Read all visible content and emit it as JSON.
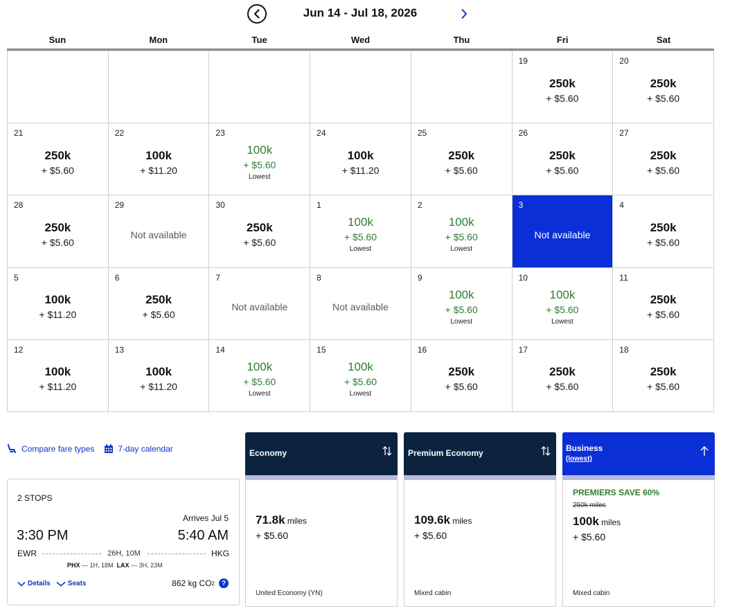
{
  "header": {
    "range_label": "Jun 14 - Jul 18, 2026",
    "prev_icon": "chevron-left-circle-icon",
    "next_icon": "chevron-right-icon"
  },
  "weekdays": [
    "Sun",
    "Mon",
    "Tue",
    "Wed",
    "Thu",
    "Fri",
    "Sat"
  ],
  "calendar": {
    "lowest_label": "Lowest",
    "not_available_label": "Not available",
    "cells": [
      {
        "day": "",
        "type": "empty"
      },
      {
        "day": "",
        "type": "empty"
      },
      {
        "day": "",
        "type": "empty"
      },
      {
        "day": "",
        "type": "empty"
      },
      {
        "day": "",
        "type": "empty"
      },
      {
        "day": "19",
        "type": "fare",
        "miles": "250k",
        "fee": "+ $5.60"
      },
      {
        "day": "20",
        "type": "fare",
        "miles": "250k",
        "fee": "+ $5.60"
      },
      {
        "day": "21",
        "type": "fare",
        "miles": "250k",
        "fee": "+ $5.60"
      },
      {
        "day": "22",
        "type": "fare",
        "miles": "100k",
        "fee": "+ $11.20"
      },
      {
        "day": "23",
        "type": "lowest",
        "miles": "100k",
        "fee": "+ $5.60"
      },
      {
        "day": "24",
        "type": "fare",
        "miles": "100k",
        "fee": "+ $11.20"
      },
      {
        "day": "25",
        "type": "fare",
        "miles": "250k",
        "fee": "+ $5.60"
      },
      {
        "day": "26",
        "type": "fare",
        "miles": "250k",
        "fee": "+ $5.60"
      },
      {
        "day": "27",
        "type": "fare",
        "miles": "250k",
        "fee": "+ $5.60"
      },
      {
        "day": "28",
        "type": "fare",
        "miles": "250k",
        "fee": "+ $5.60"
      },
      {
        "day": "29",
        "type": "na"
      },
      {
        "day": "30",
        "type": "fare",
        "miles": "250k",
        "fee": "+ $5.60"
      },
      {
        "day": "1",
        "type": "lowest",
        "miles": "100k",
        "fee": "+ $5.60"
      },
      {
        "day": "2",
        "type": "lowest",
        "miles": "100k",
        "fee": "+ $5.60"
      },
      {
        "day": "3",
        "type": "na",
        "selected": true
      },
      {
        "day": "4",
        "type": "fare",
        "miles": "250k",
        "fee": "+ $5.60"
      },
      {
        "day": "5",
        "type": "fare",
        "miles": "100k",
        "fee": "+ $11.20"
      },
      {
        "day": "6",
        "type": "fare",
        "miles": "250k",
        "fee": "+ $5.60"
      },
      {
        "day": "7",
        "type": "na"
      },
      {
        "day": "8",
        "type": "na"
      },
      {
        "day": "9",
        "type": "lowest",
        "miles": "100k",
        "fee": "+ $5.60"
      },
      {
        "day": "10",
        "type": "lowest",
        "miles": "100k",
        "fee": "+ $5.60"
      },
      {
        "day": "11",
        "type": "fare",
        "miles": "250k",
        "fee": "+ $5.60"
      },
      {
        "day": "12",
        "type": "fare",
        "miles": "100k",
        "fee": "+ $11.20"
      },
      {
        "day": "13",
        "type": "fare",
        "miles": "100k",
        "fee": "+ $11.20"
      },
      {
        "day": "14",
        "type": "lowest",
        "miles": "100k",
        "fee": "+ $5.60"
      },
      {
        "day": "15",
        "type": "lowest",
        "miles": "100k",
        "fee": "+ $5.60"
      },
      {
        "day": "16",
        "type": "fare",
        "miles": "250k",
        "fee": "+ $5.60"
      },
      {
        "day": "17",
        "type": "fare",
        "miles": "250k",
        "fee": "+ $5.60"
      },
      {
        "day": "18",
        "type": "fare",
        "miles": "250k",
        "fee": "+ $5.60"
      }
    ]
  },
  "links": {
    "compare_fare_types": "Compare fare types",
    "compare_icon": "seat-icon",
    "seven_day_calendar": "7-day calendar",
    "calendar_icon": "calendar-icon"
  },
  "flight": {
    "stops": "2 STOPS",
    "arrives": "Arrives Jul 5",
    "depart_time": "3:30 PM",
    "arrive_time": "5:40 AM",
    "origin": "EWR",
    "destination": "HKG",
    "duration": "26H, 10M",
    "layover1_code": "PHX",
    "layover1_time": "— 1H, 18M",
    "layover2_code": "LAX",
    "layover2_time": "— 3H, 23M",
    "details_label": "Details",
    "seats_label": "Seats",
    "co2_value": "862 kg CO",
    "co2_sub": "2",
    "help_icon": "?"
  },
  "fares": [
    {
      "title": "Economy",
      "miles": "71.8k",
      "miles_unit": "miles",
      "fee": "+ $5.60",
      "cabin": "United Economy (YN)",
      "sort_icon": "sort-updown-icon"
    },
    {
      "title": "Premium Economy",
      "miles": "109.6k",
      "miles_unit": "miles",
      "fee": "+ $5.60",
      "cabin": "Mixed cabin",
      "sort_icon": "sort-updown-icon"
    },
    {
      "title": "Business",
      "subtitle": "(lowest)",
      "promo": "PREMIERS SAVE 60%",
      "original_miles": "250k miles",
      "miles": "100k",
      "miles_unit": "miles",
      "fee": "+ $5.60",
      "cabin": "Mixed cabin",
      "sort_icon": "arrow-up-icon"
    }
  ],
  "colors": {
    "accent_blue": "#0b2fd6",
    "link_blue": "#0b35c9",
    "dark_navy": "#0c2340",
    "lowest_green": "#2e7d32"
  }
}
